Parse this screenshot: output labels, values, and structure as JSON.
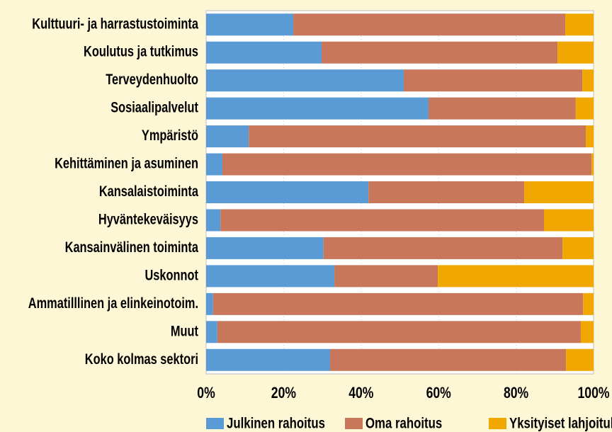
{
  "chart_data": {
    "type": "stacked-bar-horizontal",
    "categories": [
      "Kulttuuri- ja harrastustoiminta",
      "Koulutus ja tutkimus",
      "Terveydenhuolto",
      "Sosiaalipalvelut",
      "Ympäristö",
      "Kehittäminen ja asuminen",
      "Kansalaistoiminta",
      "Hyväntekeväisyys",
      "Kansainvälinen toiminta",
      "Uskonnot",
      "Ammatilllinen ja elinkeinotoim.",
      "Muut",
      "Koko kolmas sektori"
    ],
    "series": [
      {
        "name": "Julkinen rahoitus",
        "color": "#5b9bd5",
        "values": [
          22.5,
          29.8,
          51,
          57.4,
          11,
          4.2,
          41.9,
          3.7,
          30.3,
          33.1,
          1.8,
          2.9,
          32
        ]
      },
      {
        "name": "Oma rahoitus",
        "color": "#c8775a",
        "values": [
          70.2,
          60.9,
          46.1,
          38,
          87,
          95.3,
          40.2,
          83.5,
          61.7,
          26.7,
          95.5,
          93.8,
          60.9
        ]
      },
      {
        "name": "Yksityiset lahjoitukset",
        "color": "#f0a800",
        "values": [
          7.3,
          9.3,
          2.9,
          4.6,
          2,
          0.5,
          17.9,
          12.8,
          8,
          40.2,
          2.7,
          3.3,
          7.1
        ]
      }
    ],
    "xlim": [
      0,
      100
    ],
    "xticks": [
      {
        "value": 0,
        "label": "0%"
      },
      {
        "value": 20,
        "label": "20%"
      },
      {
        "value": 40,
        "label": "40%"
      },
      {
        "value": 60,
        "label": "60%"
      },
      {
        "value": 80,
        "label": "80%"
      },
      {
        "value": 100,
        "label": "100%"
      }
    ],
    "grid": true,
    "legend": "bottom"
  }
}
